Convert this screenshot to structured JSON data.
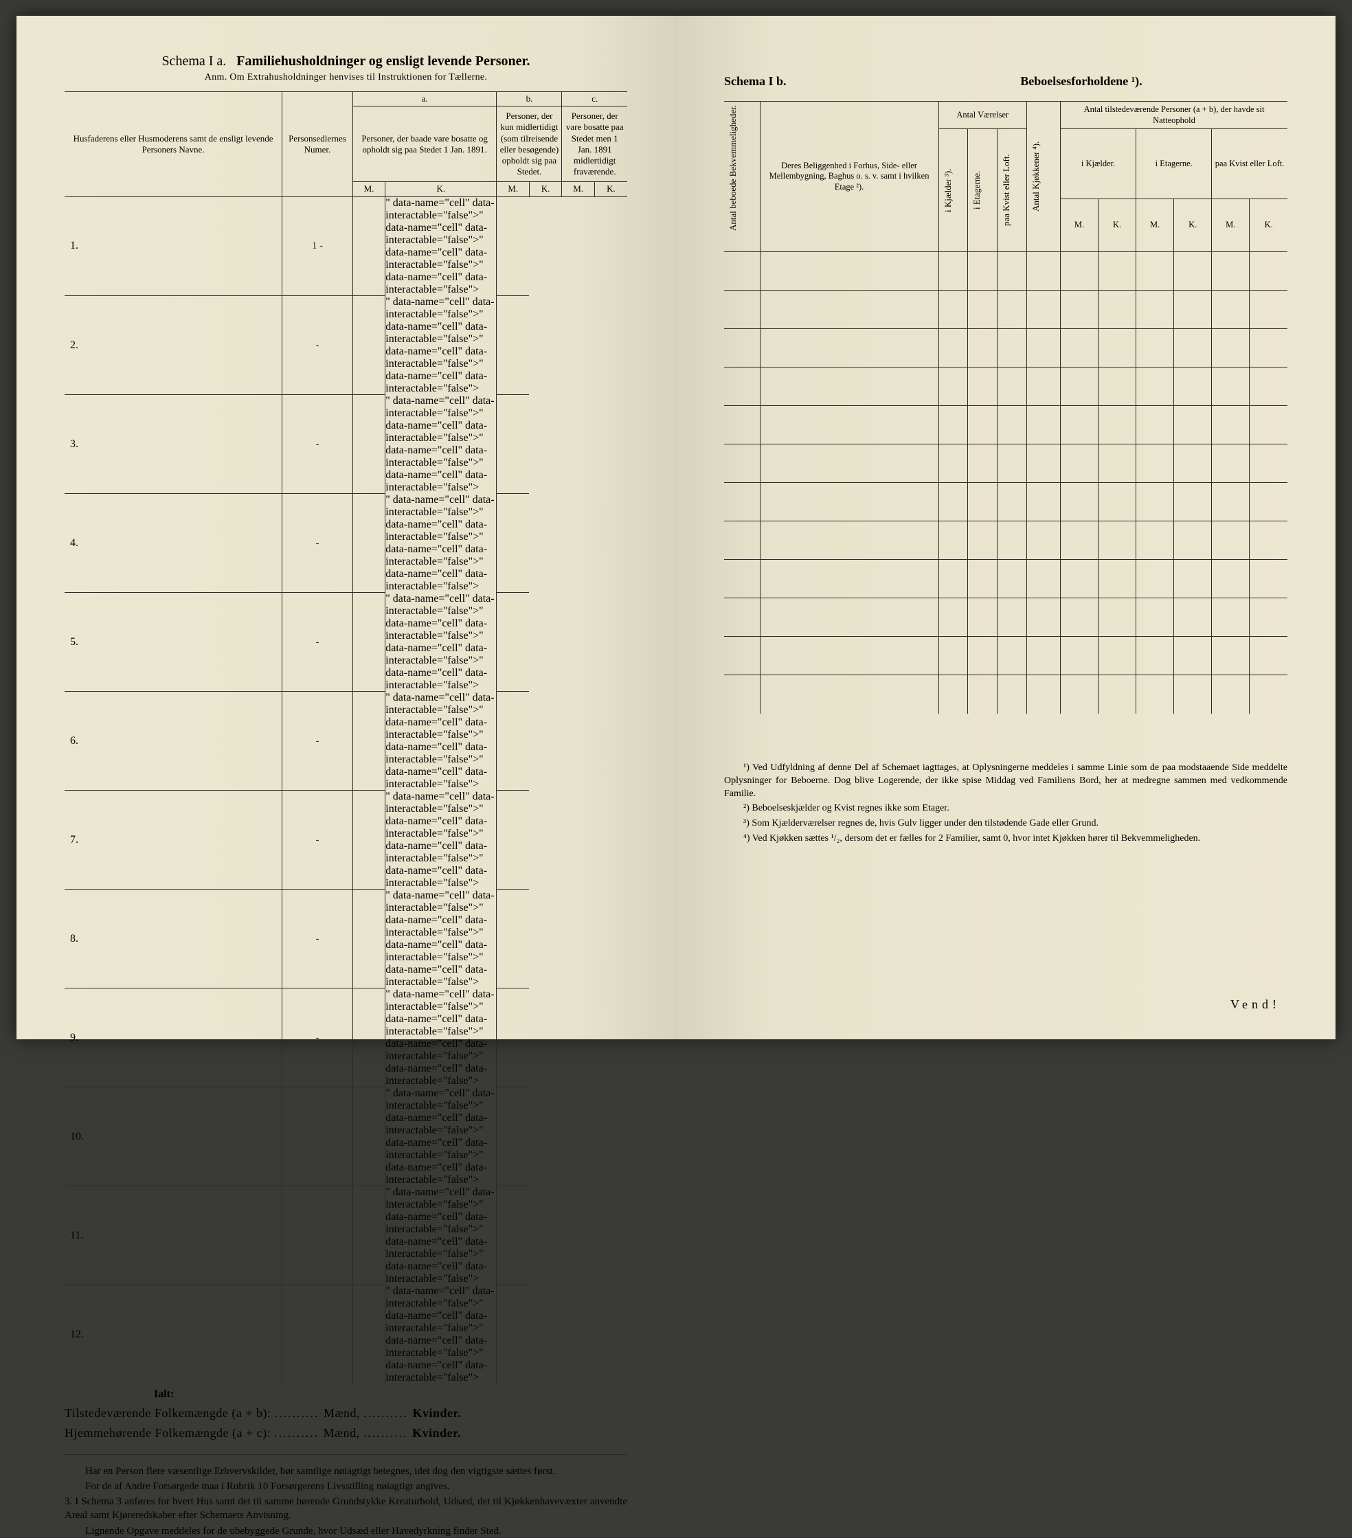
{
  "colors": {
    "paper": "#e8e3cc",
    "ink": "#2a2a2a",
    "outer": "#3a3a36"
  },
  "left": {
    "schema_label": "Schema I a.",
    "schema_title": "Familiehusholdninger og ensligt levende Personer.",
    "anm": "Anm. Om Extrahusholdninger henvises til Instruktionen for Tællerne.",
    "col1": "Husfaderens eller Husmoderens samt de ensligt levende Personers Navne.",
    "col2": "Personsedlernes Numer.",
    "grp_a": "a.",
    "grp_a_text": "Personer, der baade vare bosatte og opholdt sig paa Stedet 1 Jan. 1891.",
    "grp_b": "b.",
    "grp_b_text": "Personer, der kun midlertidigt (som tilreisende eller besøgende) opholdt sig paa Stedet.",
    "grp_c": "c.",
    "grp_c_text": "Personer, der vare bosatte paa Stedet men 1 Jan. 1891 midlertidigt fraværende.",
    "M": "M.",
    "K": "K.",
    "rows": [
      "1.",
      "2.",
      "3.",
      "4.",
      "5.",
      "6.",
      "7.",
      "8.",
      "9.",
      "10.",
      "11.",
      "12."
    ],
    "person_numbers": [
      "1 -",
      "-",
      "-",
      "-",
      "-",
      "-",
      "-",
      "-",
      "-",
      "-",
      "-",
      "-"
    ],
    "ialt": "Ialt:",
    "sum1_a": "Tilstedeværende Folkemængde (a + b):",
    "sum2_a": "Hjemmehørende Folkemængde (a + c):",
    "maend": "Mænd,",
    "kvinder": "Kvinder.",
    "foot_p1": "Har en Person flere væsentlige Erhvervskilder, bør samtlige nøiagtigt betegnes, idet dog den vigtigste sættes først.",
    "foot_p2": "For de af Andre Forsørgede maa i Rubrik 10 Forsørgerens Livsstilling nøiagtigt angives.",
    "foot_p3_num": "3.",
    "foot_p3": "I Schema 3 anføres for hvert Hus samt det til samme hørende Grundstykke Kreaturhold, Udsæd, det til Kjøkkenhavevæxter anvendte Areal samt Kjøreredskaber efter Schemaets Anvisning.",
    "foot_p4": "Lignende Opgave meddeles for de ubebyggede Grunde, hvor Udsæd eller Havedyrkning finder Sted."
  },
  "right": {
    "schema_label": "Schema I b.",
    "schema_title": "Beboelsesforholdene ¹).",
    "col_v1": "Antal beboede Bekvemmeligheder.",
    "col2": "Deres Beliggenhed i Forhus, Side- eller Mellembygning, Baghus o. s. v. samt i hvilken Etage ²).",
    "grp_rooms": "Antal Værelser",
    "col_v_kj": "i Kjælder ³).",
    "col_v_et": "i Etagerne.",
    "col_v_loft": "paa Kvist eller Loft.",
    "col_v_kjok": "Antal Kjøkkener ⁴).",
    "grp_persons": "Antal tilstedeværende Personer (a + b), der havde sit Natteophold",
    "sub_kj": "i Kjælder.",
    "sub_et": "i Etagerne.",
    "sub_loft": "paa Kvist eller Loft.",
    "M": "M.",
    "K": "K.",
    "body_rows": 12,
    "fn1": "¹) Ved Udfyldning af denne Del af Schemaet iagttages, at Oplysningerne meddeles i samme Linie som de paa modstaaende Side meddelte Oplysninger for Beboerne. Dog blive Logerende, der ikke spise Middag ved Familiens Bord, her at medregne sammen med vedkommende Familie.",
    "fn2": "²) Beboelseskjælder og Kvist regnes ikke som Etager.",
    "fn3": "³) Som Kjælderværelser regnes de, hvis Gulv ligger under den tilstødende Gade eller Grund.",
    "fn4": "⁴) Ved Kjøkken sættes ¹/₂, dersom det er fælles for 2 Familier, samt 0, hvor intet Kjøkken hører til Bekvemmeligheden.",
    "vend": "Vend!"
  }
}
